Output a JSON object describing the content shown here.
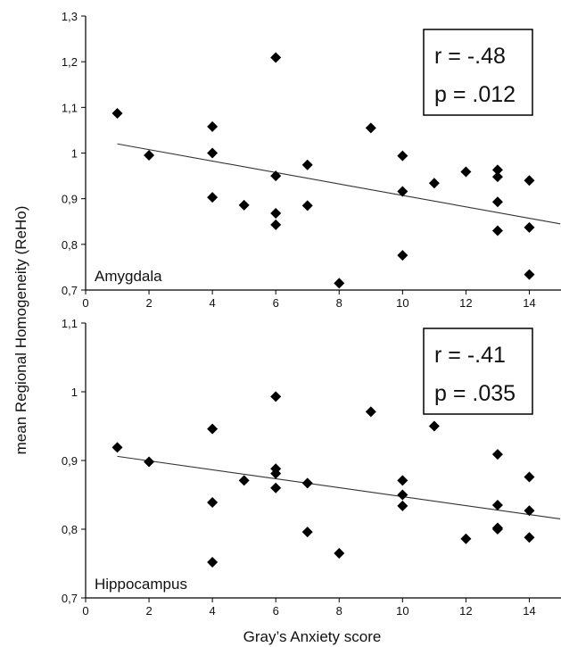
{
  "chart_data": [
    {
      "type": "scatter",
      "panel_label": "Amygdala",
      "stats": {
        "r": "r = -.48",
        "p": "p = .012"
      },
      "xlim": [
        0,
        15
      ],
      "ylim": [
        0.7,
        1.3
      ],
      "x_ticks": [
        0,
        2,
        4,
        6,
        8,
        10,
        12,
        14
      ],
      "y_ticks": [
        "0,7",
        "0,8",
        "0,9",
        "1",
        "1,1",
        "1,2",
        "1,3"
      ],
      "y_tick_values": [
        0.7,
        0.8,
        0.9,
        1.0,
        1.1,
        1.2,
        1.3
      ],
      "trendline": {
        "x": [
          1,
          15
        ],
        "y": [
          1.02,
          0.845
        ]
      },
      "points": [
        {
          "x": 1,
          "y": 1.087
        },
        {
          "x": 2,
          "y": 0.995
        },
        {
          "x": 4,
          "y": 1.058
        },
        {
          "x": 4,
          "y": 1.0
        },
        {
          "x": 4,
          "y": 0.903
        },
        {
          "x": 5,
          "y": 0.886
        },
        {
          "x": 6,
          "y": 1.209
        },
        {
          "x": 6,
          "y": 0.95
        },
        {
          "x": 6,
          "y": 0.868
        },
        {
          "x": 6,
          "y": 0.843
        },
        {
          "x": 7,
          "y": 0.974
        },
        {
          "x": 7,
          "y": 0.885
        },
        {
          "x": 8,
          "y": 0.715
        },
        {
          "x": 9,
          "y": 1.055
        },
        {
          "x": 10,
          "y": 0.994
        },
        {
          "x": 10,
          "y": 0.916
        },
        {
          "x": 10,
          "y": 0.776
        },
        {
          "x": 11,
          "y": 0.934
        },
        {
          "x": 12,
          "y": 0.959
        },
        {
          "x": 13,
          "y": 0.963
        },
        {
          "x": 13,
          "y": 0.948
        },
        {
          "x": 13,
          "y": 0.893
        },
        {
          "x": 13,
          "y": 0.83
        },
        {
          "x": 14,
          "y": 0.94
        },
        {
          "x": 14,
          "y": 0.837
        },
        {
          "x": 14,
          "y": 0.734
        }
      ]
    },
    {
      "type": "scatter",
      "panel_label": "Hippocampus",
      "stats": {
        "r": "r = -.41",
        "p": "p = .035"
      },
      "xlim": [
        0,
        15
      ],
      "ylim": [
        0.7,
        1.1
      ],
      "x_ticks": [
        0,
        2,
        4,
        6,
        8,
        10,
        12,
        14
      ],
      "y_ticks": [
        "0,7",
        "0,8",
        "0,9",
        "1",
        "1,1"
      ],
      "y_tick_values": [
        0.7,
        0.8,
        0.9,
        1.0,
        1.1
      ],
      "trendline": {
        "x": [
          1,
          15
        ],
        "y": [
          0.906,
          0.815
        ]
      },
      "points": [
        {
          "x": 1,
          "y": 0.919
        },
        {
          "x": 2,
          "y": 0.898
        },
        {
          "x": 4,
          "y": 0.946
        },
        {
          "x": 4,
          "y": 0.839
        },
        {
          "x": 4,
          "y": 0.752
        },
        {
          "x": 5,
          "y": 0.871
        },
        {
          "x": 6,
          "y": 0.993
        },
        {
          "x": 6,
          "y": 0.888
        },
        {
          "x": 6,
          "y": 0.881
        },
        {
          "x": 6,
          "y": 0.86
        },
        {
          "x": 7,
          "y": 0.867
        },
        {
          "x": 7,
          "y": 0.796
        },
        {
          "x": 8,
          "y": 0.765
        },
        {
          "x": 9,
          "y": 0.971
        },
        {
          "x": 10,
          "y": 0.871
        },
        {
          "x": 10,
          "y": 0.85
        },
        {
          "x": 10,
          "y": 0.834
        },
        {
          "x": 11,
          "y": 0.95
        },
        {
          "x": 12,
          "y": 0.786
        },
        {
          "x": 13,
          "y": 0.909
        },
        {
          "x": 13,
          "y": 0.835
        },
        {
          "x": 13,
          "y": 0.802
        },
        {
          "x": 13,
          "y": 0.8
        },
        {
          "x": 14,
          "y": 0.876
        },
        {
          "x": 14,
          "y": 0.827
        },
        {
          "x": 14,
          "y": 0.788
        }
      ]
    }
  ],
  "shared": {
    "ylabel": "mean Regional Homogeneity (ReHo)",
    "xlabel": "Gray’s Anxiety score",
    "marker_color": "#000000",
    "line_color": "#333333"
  }
}
